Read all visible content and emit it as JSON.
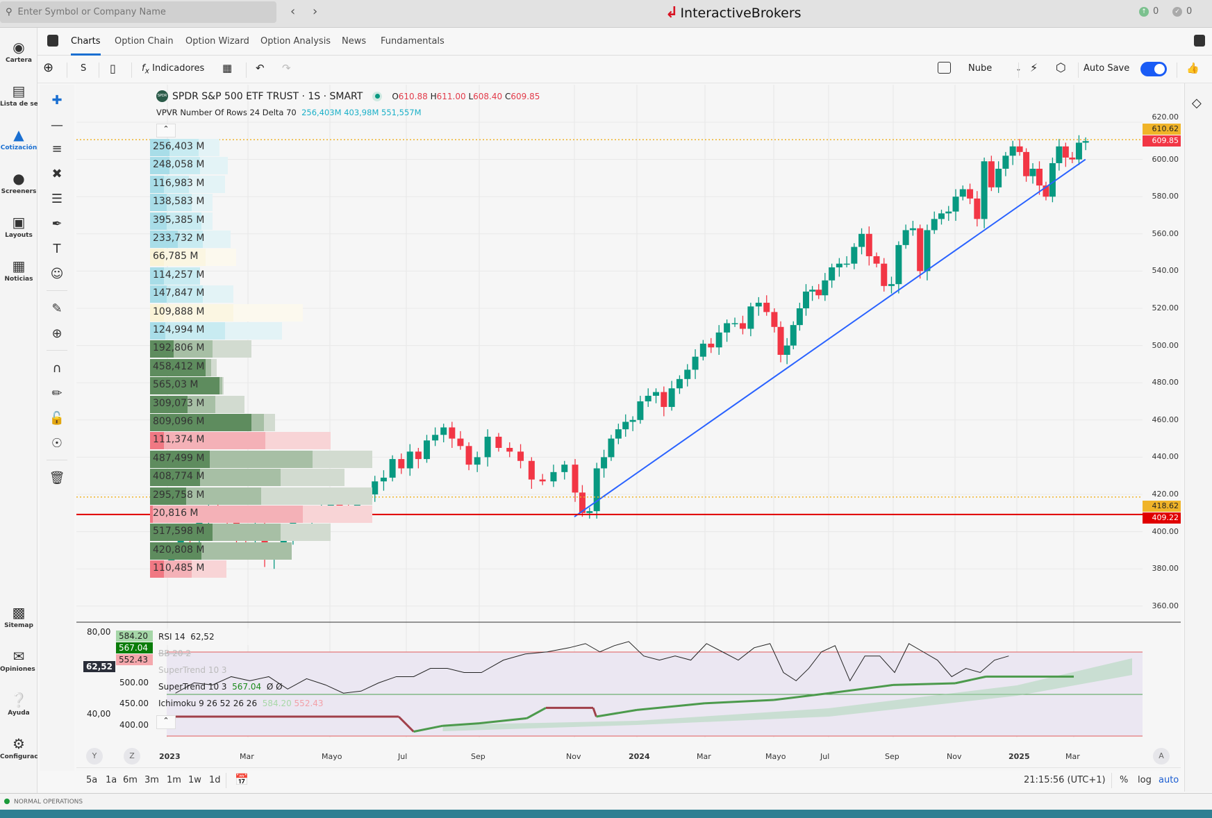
{
  "topbar": {
    "search_placeholder": "Enter Symbol or Company Name",
    "logo_text": "InteractiveBrokers",
    "alerts_count": "0",
    "orders_count": "0"
  },
  "leftnav": {
    "items": [
      {
        "label": "Cartera",
        "icon": "portfolio-icon"
      },
      {
        "label": "Lista de se...",
        "icon": "watchlist-icon"
      },
      {
        "label": "Cotización",
        "icon": "quote-icon"
      },
      {
        "label": "Screeners",
        "icon": "globe-icon"
      },
      {
        "label": "Layouts",
        "icon": "layouts-icon"
      },
      {
        "label": "Noticias",
        "icon": "news-icon"
      }
    ],
    "bottom_items": [
      {
        "label": "Sitemap",
        "icon": "sitemap-icon"
      },
      {
        "label": "Opiniones ...",
        "icon": "feedback-icon"
      },
      {
        "label": "Ayuda",
        "icon": "help-icon"
      },
      {
        "label": "Configurac...",
        "icon": "gear-icon"
      }
    ]
  },
  "tabs": [
    "Charts",
    "Option Chain",
    "Option Wizard",
    "Option Analysis",
    "News",
    "Fundamentals"
  ],
  "toolbar": {
    "symbol": "S",
    "indicators": "Indicadores",
    "chart_style": "Nube",
    "auto_save": "Auto Save",
    "auto_save_on": true
  },
  "legend": {
    "title": "SPDR S&P 500 ETF TRUST · 1S · SMART",
    "o_label": "O",
    "o": "610.88",
    "h_label": "H",
    "h": "611.00",
    "l_label": "L",
    "l": "608.40",
    "c_label": "C",
    "c": "609.85",
    "vpvr": "VPVR Number Of Rows 24 Delta 70",
    "vpvr_v1": "256,403M",
    "vpvr_v2": "403,98M",
    "vpvr_v3": "551,557M",
    "logo": "SPDR"
  },
  "colors": {
    "up": "#089981",
    "down": "#f23645",
    "trend": "#2962ff",
    "level_red": "#e00000",
    "level_yellow": "#f0b429",
    "accent": "#1a6fd1"
  },
  "vpvr_rows": [
    {
      "label": "256,403 M",
      "kind": "light",
      "w": [
        0.14,
        0.35,
        0.5
      ]
    },
    {
      "label": "248,058 M",
      "kind": "light",
      "w": [
        0.14,
        0.36,
        0.56
      ]
    },
    {
      "label": "116,983 M",
      "kind": "light",
      "w": [
        0.1,
        0.28,
        0.54
      ]
    },
    {
      "label": "138,583 M",
      "kind": "light",
      "w": [
        0.12,
        0.3,
        0.45
      ]
    },
    {
      "label": "395,385 M",
      "kind": "light",
      "w": [
        0.12,
        0.37,
        0.45
      ]
    },
    {
      "label": "233,732 M",
      "kind": "light",
      "w": [
        0.2,
        0.38,
        0.58
      ]
    },
    {
      "label": "66,785 M",
      "kind": "yellow",
      "w": [
        0.1,
        0.4,
        0.62
      ]
    },
    {
      "label": "114,257 M",
      "kind": "light",
      "w": [
        0.1,
        0.36,
        0.36
      ]
    },
    {
      "label": "147,847 M",
      "kind": "light",
      "w": [
        0.12,
        0.38,
        0.6
      ]
    },
    {
      "label": "109,888 M",
      "kind": "yellow",
      "w": [
        0.1,
        0.6,
        1.1
      ]
    },
    {
      "label": "124,994 M",
      "kind": "light",
      "w": [
        0.11,
        0.54,
        0.95
      ]
    },
    {
      "label": "192,806 M",
      "kind": "green",
      "w": [
        0.17,
        0.45,
        0.73
      ]
    },
    {
      "label": "458,412 M",
      "kind": "green",
      "w": [
        0.4,
        0.44,
        0.48
      ]
    },
    {
      "label": "565,03 M",
      "kind": "green",
      "w": [
        0.5,
        0.52,
        0.53
      ]
    },
    {
      "label": "309,073 M",
      "kind": "green",
      "w": [
        0.27,
        0.47,
        0.68
      ]
    },
    {
      "label": "809,096 M",
      "kind": "green",
      "w": [
        0.73,
        0.82,
        0.9
      ]
    },
    {
      "label": "111,374 M",
      "kind": "red",
      "w": [
        0.1,
        0.83,
        1.3
      ]
    },
    {
      "label": "487,499 M",
      "kind": "green",
      "w": [
        0.43,
        1.17,
        1.6
      ]
    },
    {
      "label": "408,774 M",
      "kind": "green",
      "w": [
        0.36,
        0.94,
        1.4
      ]
    },
    {
      "label": "295,758 M",
      "kind": "green",
      "w": [
        0.26,
        0.8,
        1.6
      ]
    },
    {
      "label": "20,816 M",
      "kind": "red",
      "w": [
        0.02,
        1.1,
        1.6
      ]
    },
    {
      "label": "517,598 M",
      "kind": "green",
      "w": [
        0.45,
        0.94,
        1.3
      ]
    },
    {
      "label": "420,808 M",
      "kind": "green",
      "w": [
        0.37,
        1.02,
        1.02
      ]
    },
    {
      "label": "110,485 M",
      "kind": "red",
      "w": [
        0.1,
        0.3,
        0.55
      ]
    }
  ],
  "chart_data": {
    "type": "candlestick",
    "interval": "1 week",
    "start": "2023-01",
    "ylim": [
      360,
      620
    ],
    "price_ticks": [
      "620.00",
      "600.00",
      "580.00",
      "560.00",
      "540.00",
      "520.00",
      "500.00",
      "480.00",
      "460.00",
      "440.00",
      "420.00",
      "400.00",
      "380.00",
      "360.00"
    ],
    "time_labels": [
      {
        "t": "2023",
        "m": 0,
        "bold": true
      },
      {
        "t": "Mar",
        "m": 2
      },
      {
        "t": "Mayo",
        "m": 4
      },
      {
        "t": "Jul",
        "m": 6
      },
      {
        "t": "Sep",
        "m": 8
      },
      {
        "t": "Nov",
        "m": 10
      },
      {
        "t": "2024",
        "m": 12,
        "bold": true
      },
      {
        "t": "Mar",
        "m": 14
      },
      {
        "t": "Mayo",
        "m": 16
      },
      {
        "t": "Jul",
        "m": 18
      },
      {
        "t": "Sep",
        "m": 20
      },
      {
        "t": "Nov",
        "m": 22
      },
      {
        "t": "2025",
        "m": 24,
        "bold": true
      },
      {
        "t": "Mar",
        "m": 26
      }
    ],
    "first_open": 383,
    "closes": [
      388,
      398,
      396,
      406,
      412,
      408,
      407,
      397,
      396,
      404,
      385,
      389,
      396,
      409,
      409,
      412,
      412,
      415,
      412,
      411,
      418,
      420,
      427,
      429,
      439,
      434,
      443,
      439,
      449,
      452,
      456,
      450,
      446,
      436,
      440,
      451,
      445,
      443,
      438,
      428,
      427,
      432,
      436,
      421,
      410,
      411,
      434,
      440,
      450,
      455,
      459,
      460,
      470,
      473,
      475,
      467,
      477,
      482,
      487,
      494,
      501,
      499,
      507,
      512,
      512,
      509,
      521,
      523,
      518,
      510,
      495,
      500,
      511,
      520,
      529,
      530,
      527,
      535,
      542,
      544,
      544,
      553,
      560,
      548,
      544,
      532,
      533,
      554,
      562,
      563,
      540,
      562,
      568,
      571,
      572,
      580,
      584,
      579,
      568,
      599,
      585,
      595,
      602,
      607,
      604,
      591,
      595,
      586,
      580,
      598,
      607,
      601,
      600,
      609,
      609.85
    ],
    "levels": [
      {
        "label": "610.62",
        "value": 610.62,
        "style": "dotted",
        "color": "#f0b429"
      },
      {
        "label": "418.62",
        "value": 418.62,
        "style": "dotted",
        "color": "#f0b429"
      },
      {
        "label": "409.22",
        "value": 409.22,
        "style": "solid",
        "color": "#e00000"
      }
    ],
    "last_price_label": "609.85",
    "axis_top_label": "620.00",
    "trendline": {
      "from": {
        "m": 10.0,
        "p": 408
      },
      "to": {
        "m": 26.4,
        "p": 600
      }
    },
    "rsi": {
      "label": "RSI 14",
      "value": "62,52",
      "ticks": [
        "80,00",
        "40,00"
      ],
      "values": [
        50,
        55,
        54,
        58,
        56,
        58,
        52,
        57,
        54,
        50,
        51,
        55,
        58,
        58,
        62,
        62,
        60,
        60,
        66,
        69,
        70,
        72,
        74,
        70,
        73,
        75,
        68,
        66,
        68,
        66,
        74,
        70,
        66,
        72,
        74,
        60,
        56,
        62,
        70,
        73,
        56,
        68,
        68,
        60,
        74,
        70,
        66,
        58,
        62,
        60,
        66,
        68
      ]
    },
    "pane_price_ticks": [
      "500.00",
      "450.00",
      "400.00"
    ],
    "supertrend": {
      "label": "SuperTrend 10 3",
      "value": "567.04",
      "extra": "Ø Ø",
      "faded_label": "SuperTrend 10 3",
      "points": [
        {
          "m": 0,
          "p": 420,
          "d": "down"
        },
        {
          "m": 5.8,
          "p": 420,
          "d": "down"
        },
        {
          "m": 6.2,
          "p": 384,
          "d": "up"
        },
        {
          "m": 7,
          "p": 398,
          "d": "up"
        },
        {
          "m": 8,
          "p": 404,
          "d": "up"
        },
        {
          "m": 9,
          "p": 416,
          "d": "up"
        },
        {
          "m": 9.4,
          "p": 441,
          "d": "down"
        },
        {
          "m": 10.6,
          "p": 441,
          "d": "down"
        },
        {
          "m": 10.7,
          "p": 420,
          "d": "up"
        },
        {
          "m": 12,
          "p": 436,
          "d": "up"
        },
        {
          "m": 14,
          "p": 452,
          "d": "up"
        },
        {
          "m": 16,
          "p": 460,
          "d": "up"
        },
        {
          "m": 18,
          "p": 476,
          "d": "up"
        },
        {
          "m": 20,
          "p": 496,
          "d": "up"
        },
        {
          "m": 22,
          "p": 500,
          "d": "up"
        },
        {
          "m": 23,
          "p": 516,
          "d": "up"
        },
        {
          "m": 26,
          "p": 516,
          "d": "up"
        }
      ]
    },
    "bb": {
      "label": "BB 20 2"
    },
    "ichimoku": {
      "label": "Ichimoku 9 26 52 26 26",
      "v1": "584.20",
      "v2": "552.43"
    },
    "pane_badges": [
      "584.20",
      "567.04",
      "552.43"
    ],
    "rsi_badge": "62,52"
  },
  "bottom": {
    "ranges": [
      "5a",
      "1a",
      "6m",
      "3m",
      "1m",
      "1w",
      "1d"
    ],
    "clock": "21:15:56 (UTC+1)",
    "pct": "%",
    "log": "log",
    "auto": "auto",
    "y_btn": "Y",
    "z_btn": "Z",
    "a_btn": "A"
  },
  "status": {
    "text": "NORMAL OPERATIONS"
  }
}
